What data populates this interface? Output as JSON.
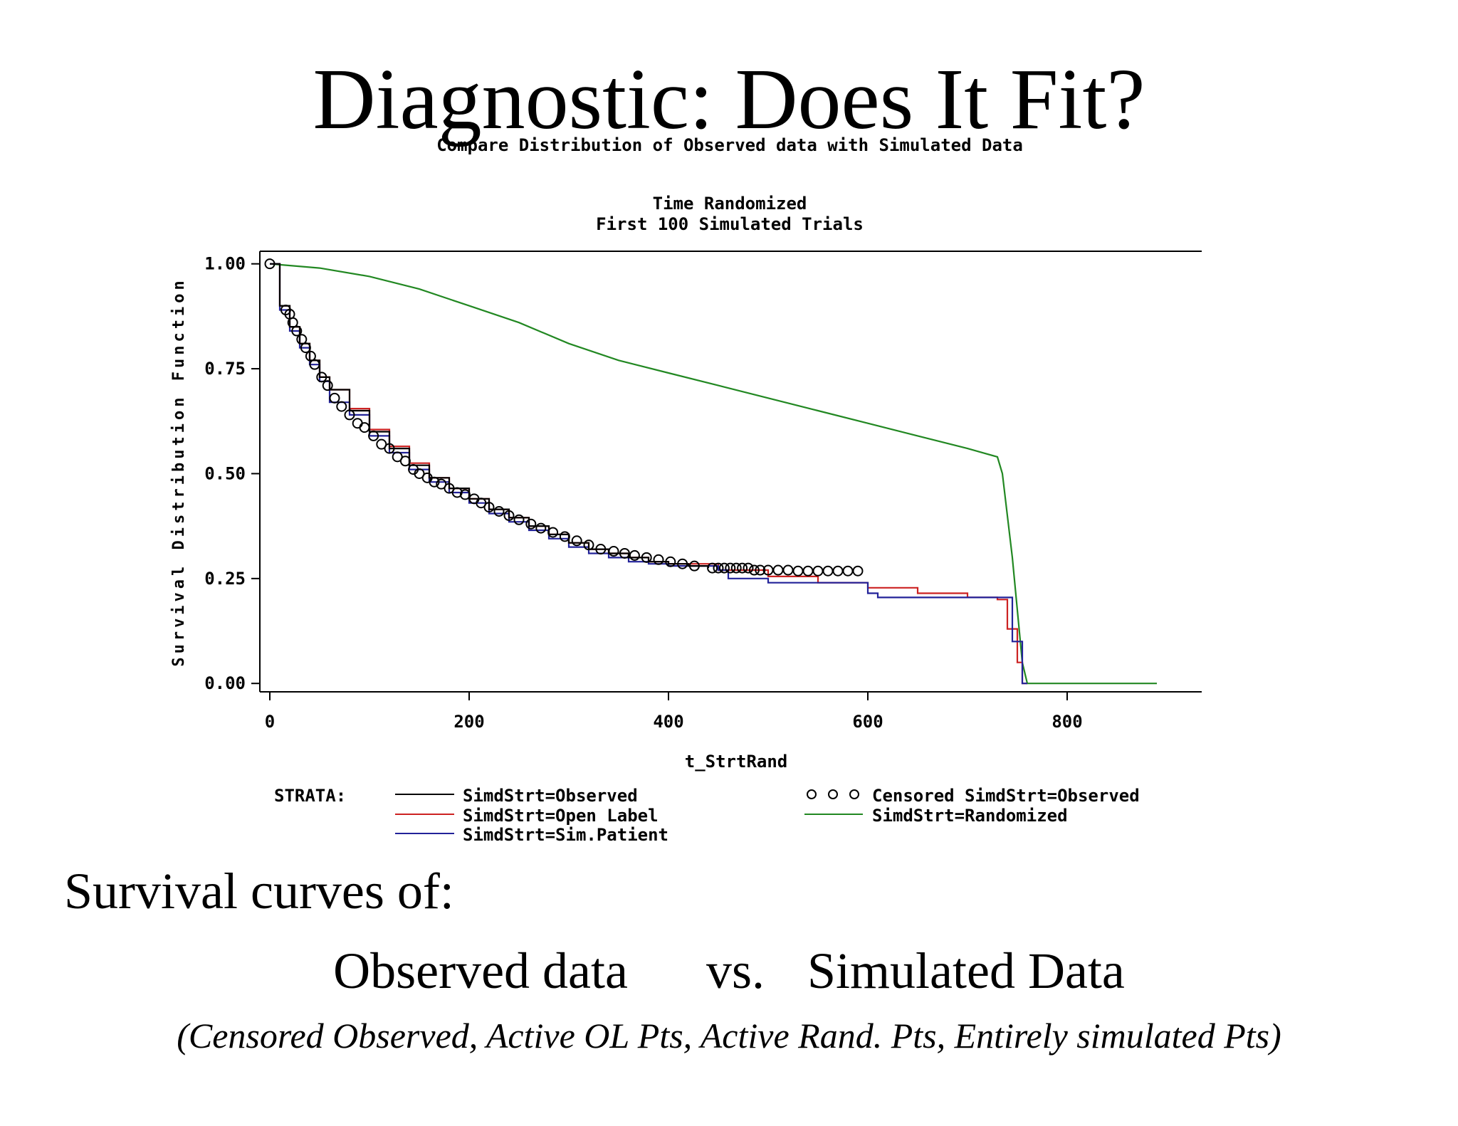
{
  "slide": {
    "title": "Diagnostic: Does It Fit?",
    "caption_line1": "Survival curves of:",
    "caption_line2_left": "Observed data",
    "caption_line2_mid": "vs.",
    "caption_line2_right": "Simulated Data",
    "caption_line3": "(Censored Observed, Active OL Pts, Active Rand. Pts, Entirely simulated Pts)"
  },
  "chart_data": {
    "type": "line",
    "step": true,
    "title": "Compare Distribution of Observed data with Simulated Data",
    "subtitle_lines": [
      "Time Randomized",
      "First 100 Simulated Trials"
    ],
    "xlabel": "t_StrtRand",
    "ylabel": "Survival Distribution Function",
    "xlim": [
      -10,
      935
    ],
    "ylim": [
      -0.02,
      1.03
    ],
    "xticks": [
      0,
      200,
      400,
      600,
      800
    ],
    "xtick_labels": [
      "0",
      "200",
      "400",
      "600",
      "800"
    ],
    "yticks": [
      0,
      0.25,
      0.5,
      0.75,
      1.0
    ],
    "ytick_labels": [
      "0.00",
      "0.25",
      "0.50",
      "0.75",
      "1.00"
    ],
    "legend_title": "STRATA:",
    "legend_placement": "bottom",
    "series": [
      {
        "name": "SimdStrt=Observed",
        "color": "#000000",
        "x": [
          0,
          10,
          20,
          30,
          40,
          50,
          60,
          80,
          100,
          120,
          140,
          160,
          180,
          200,
          220,
          240,
          260,
          280,
          300,
          320,
          340,
          360,
          380,
          400,
          420,
          440
        ],
        "y": [
          1.0,
          0.9,
          0.85,
          0.81,
          0.77,
          0.73,
          0.7,
          0.65,
          0.6,
          0.56,
          0.52,
          0.49,
          0.465,
          0.44,
          0.415,
          0.395,
          0.375,
          0.355,
          0.335,
          0.32,
          0.31,
          0.3,
          0.29,
          0.285,
          0.28,
          0.275
        ]
      },
      {
        "name": "SimdStrt=Open Label",
        "color": "#cc2222",
        "x": [
          0,
          10,
          20,
          30,
          40,
          50,
          60,
          80,
          100,
          120,
          140,
          160,
          180,
          200,
          220,
          240,
          260,
          280,
          300,
          320,
          340,
          360,
          380,
          400,
          450,
          500,
          550,
          600,
          650,
          700,
          730,
          740,
          750,
          755,
          760
        ],
        "y": [
          1.0,
          0.9,
          0.85,
          0.81,
          0.77,
          0.73,
          0.7,
          0.655,
          0.605,
          0.565,
          0.525,
          0.49,
          0.465,
          0.44,
          0.415,
          0.395,
          0.375,
          0.355,
          0.335,
          0.32,
          0.31,
          0.3,
          0.29,
          0.285,
          0.27,
          0.255,
          0.24,
          0.228,
          0.215,
          0.205,
          0.2,
          0.13,
          0.05,
          0.0,
          0.0
        ]
      },
      {
        "name": "SimdStrt=Sim.Patient",
        "color": "#222299",
        "x": [
          0,
          10,
          20,
          30,
          40,
          50,
          60,
          80,
          100,
          120,
          140,
          160,
          180,
          200,
          220,
          240,
          260,
          280,
          300,
          320,
          340,
          360,
          380,
          400,
          450,
          460,
          500,
          600,
          610,
          730,
          745,
          755,
          760
        ],
        "y": [
          1.0,
          0.89,
          0.84,
          0.8,
          0.76,
          0.72,
          0.67,
          0.64,
          0.59,
          0.55,
          0.51,
          0.48,
          0.455,
          0.43,
          0.405,
          0.385,
          0.365,
          0.345,
          0.325,
          0.31,
          0.3,
          0.29,
          0.285,
          0.28,
          0.27,
          0.25,
          0.24,
          0.215,
          0.205,
          0.205,
          0.1,
          0.0,
          0.0
        ]
      },
      {
        "name": "SimdStrt=Randomized",
        "color": "#228822",
        "step": false,
        "x": [
          0,
          50,
          100,
          150,
          200,
          250,
          300,
          350,
          400,
          450,
          500,
          550,
          600,
          650,
          700,
          730,
          735,
          745,
          755,
          760,
          800,
          890
        ],
        "y": [
          1.0,
          0.99,
          0.97,
          0.94,
          0.9,
          0.86,
          0.81,
          0.77,
          0.74,
          0.71,
          0.68,
          0.65,
          0.62,
          0.59,
          0.56,
          0.54,
          0.5,
          0.3,
          0.05,
          0.0,
          0.0,
          0.0
        ]
      }
    ],
    "censored": {
      "name": "Censored SimdStrt=Observed",
      "color": "#000000",
      "marker": "circle",
      "x": [
        0,
        16,
        20,
        23,
        27,
        32,
        36,
        41,
        45,
        52,
        58,
        65,
        72,
        80,
        88,
        95,
        104,
        112,
        120,
        128,
        136,
        144,
        150,
        158,
        165,
        172,
        180,
        188,
        196,
        205,
        212,
        220,
        230,
        240,
        250,
        262,
        272,
        284,
        296,
        308,
        320,
        332,
        345,
        356,
        366,
        378,
        390,
        402,
        414,
        426,
        444,
        450,
        456,
        462,
        468,
        474,
        480,
        486,
        492,
        500,
        510,
        520,
        530,
        540,
        550,
        560,
        570,
        580,
        590
      ],
      "y": [
        1.0,
        0.89,
        0.88,
        0.86,
        0.84,
        0.82,
        0.8,
        0.78,
        0.76,
        0.73,
        0.71,
        0.68,
        0.66,
        0.64,
        0.62,
        0.61,
        0.59,
        0.57,
        0.56,
        0.54,
        0.53,
        0.51,
        0.5,
        0.49,
        0.48,
        0.475,
        0.465,
        0.455,
        0.45,
        0.44,
        0.43,
        0.42,
        0.41,
        0.4,
        0.39,
        0.38,
        0.37,
        0.36,
        0.35,
        0.34,
        0.33,
        0.32,
        0.315,
        0.31,
        0.305,
        0.3,
        0.295,
        0.29,
        0.285,
        0.28,
        0.275,
        0.275,
        0.275,
        0.275,
        0.275,
        0.275,
        0.275,
        0.27,
        0.27,
        0.27,
        0.27,
        0.27,
        0.268,
        0.268,
        0.268,
        0.268,
        0.268,
        0.268,
        0.268
      ]
    }
  }
}
